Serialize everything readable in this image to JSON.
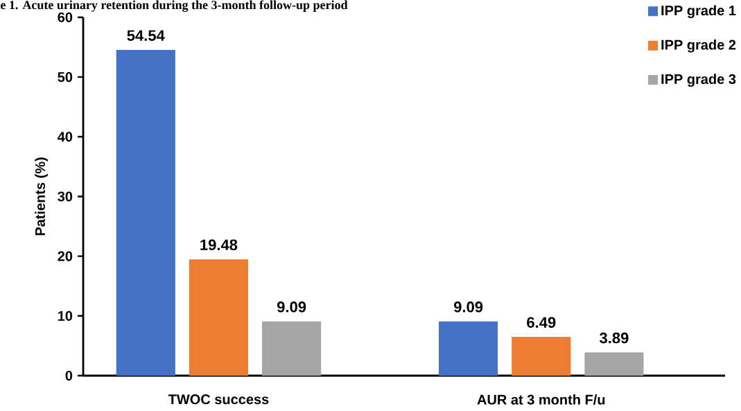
{
  "chart_data": {
    "type": "bar",
    "title": "e 1. Acute urinary retention during the 3-month follow-up period",
    "ylabel": "Patients (%)",
    "categories": [
      "TWOC success",
      "AUR at 3 month F/u"
    ],
    "series": [
      {
        "name": "IPP grade 1",
        "color": "#4472c4",
        "values": [
          54.54,
          9.09
        ]
      },
      {
        "name": "IPP grade 2",
        "color": "#ed7d31",
        "values": [
          19.48,
          6.49
        ]
      },
      {
        "name": "IPP grade 3",
        "color": "#a5a5a5",
        "values": [
          9.09,
          3.89
        ]
      }
    ],
    "ylim": [
      0,
      60
    ],
    "yticks": [
      0,
      10,
      20,
      30,
      40,
      50,
      60
    ],
    "data_labels": true,
    "legend": "top right",
    "grid": false
  }
}
